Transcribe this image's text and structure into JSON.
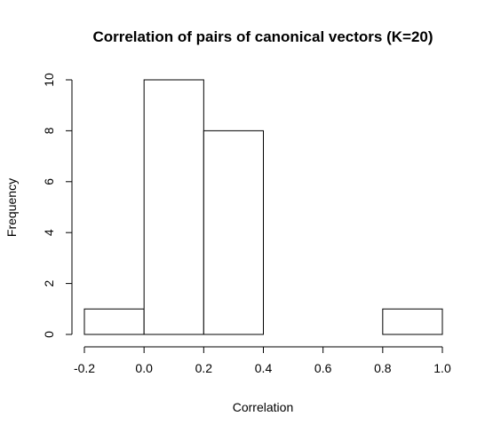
{
  "chart_data": {
    "type": "bar",
    "title": "Correlation of pairs of canonical vectors (K=20)",
    "xlabel": "Correlation",
    "ylabel": "Frequency",
    "bins": [
      {
        "start": -0.2,
        "end": 0.0,
        "count": 1
      },
      {
        "start": 0.0,
        "end": 0.2,
        "count": 10
      },
      {
        "start": 0.2,
        "end": 0.4,
        "count": 8
      },
      {
        "start": 0.4,
        "end": 0.6,
        "count": 0
      },
      {
        "start": 0.6,
        "end": 0.8,
        "count": 0
      },
      {
        "start": 0.8,
        "end": 1.0,
        "count": 1
      }
    ],
    "xlim": [
      -0.2,
      1.0
    ],
    "ylim": [
      0,
      10
    ],
    "x_ticks": [
      "-0.2",
      "0.0",
      "0.2",
      "0.4",
      "0.6",
      "0.8",
      "1.0"
    ],
    "y_ticks": [
      "0",
      "2",
      "4",
      "6",
      "8",
      "10"
    ],
    "grid": false,
    "bar_fill": "#ffffff",
    "bar_stroke": "#000000"
  }
}
